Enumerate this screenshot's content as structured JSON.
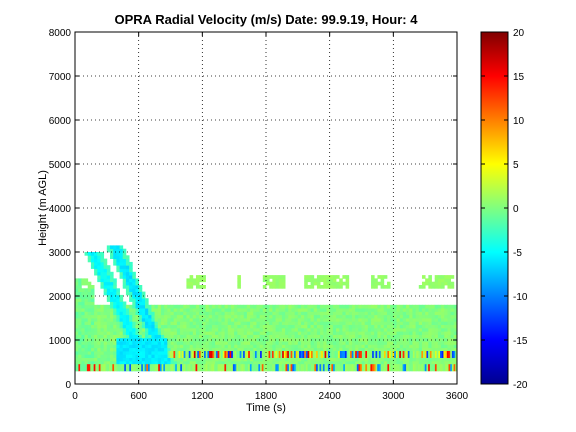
{
  "chart_data": {
    "type": "heatmap",
    "title": "OPRA Radial Velocity (m/s)  Date: 99.9.19, Hour: 4",
    "xlabel": "Time (s)",
    "ylabel": "Height (m AGL)",
    "xlim": [
      0,
      3600
    ],
    "ylim": [
      0,
      8000
    ],
    "xticks": [
      "0",
      "600",
      "1200",
      "1800",
      "2400",
      "3000",
      "3600"
    ],
    "yticks": [
      "0",
      "1000",
      "2000",
      "3000",
      "4000",
      "5000",
      "6000",
      "7000",
      "8000"
    ],
    "grid": true,
    "colorbar": {
      "min": -20,
      "max": 20,
      "ticks": [
        "20",
        "15",
        "10",
        "5",
        "0",
        "-5",
        "-10",
        "-15",
        "-20"
      ],
      "colormap": "jet"
    },
    "data_summary": {
      "background_velocity": 0,
      "main_layer_top_m": 1800,
      "elevated_patches_height_m": [
        2200,
        2450
      ],
      "elevated_patches_time_s": [
        [
          1060,
          1230
        ],
        [
          1520,
          1560
        ],
        [
          1770,
          1980
        ],
        [
          2150,
          2580
        ],
        [
          2780,
          2960
        ],
        [
          3250,
          3560
        ]
      ],
      "slanted_band_1": {
        "time_start_s": 170,
        "time_end_s": 700,
        "top_start_m": 3000,
        "velocity": -5
      },
      "slanted_band_2": {
        "time_start_s": 370,
        "time_end_s": 900,
        "top_start_m": 3150,
        "velocity": -6
      },
      "mixed_strip_height_m": [
        600,
        750
      ],
      "mixed_strip_time_s": [
        880,
        3600
      ]
    }
  }
}
